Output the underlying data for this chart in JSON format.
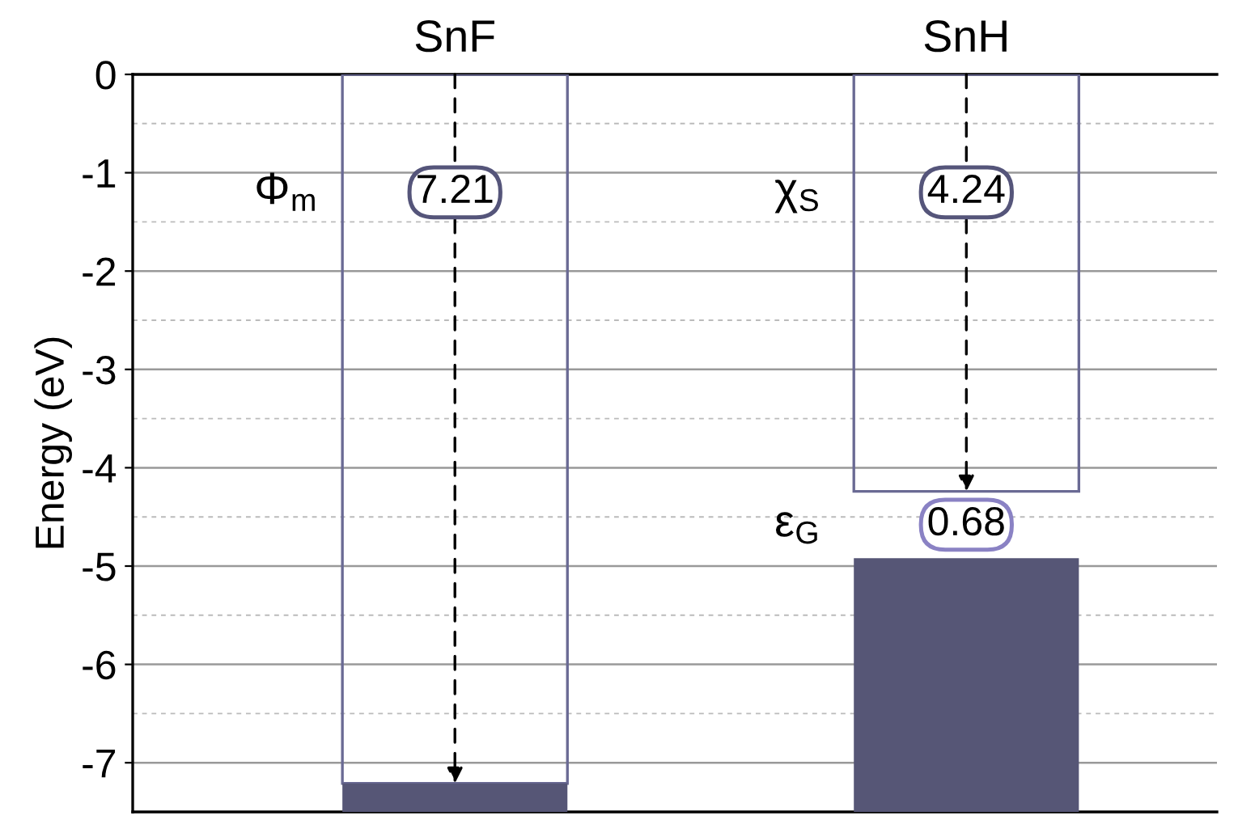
{
  "chart_data": {
    "type": "bar",
    "categories": [
      "SnF",
      "SnH"
    ],
    "ylabel": "Energy (eV)",
    "series": [
      {
        "color": "#6a6a94",
        "values": [
          -7.21,
          -4.24
        ],
        "base": [
          0,
          0
        ]
      },
      {
        "color": "#565676",
        "values": [
          -0.29,
          -2.58
        ],
        "base": [
          -7.21,
          -4.92
        ]
      }
    ],
    "ylim": [
      -7.5,
      0
    ],
    "yticks": [
      0,
      {
        "value": -0.5,
        "label": null
      },
      -1,
      {
        "value": -1.5,
        "label": null
      },
      -2,
      {
        "value": -2.5,
        "label": null
      },
      -3,
      {
        "value": -3.5,
        "label": null
      },
      -4,
      {
        "value": -4.5,
        "label": null
      },
      -5,
      {
        "value": -5.5,
        "label": null
      },
      -6,
      {
        "value": -6.5,
        "label": null
      },
      -7
    ],
    "grid": "y",
    "annotations": [
      "Φ$_{m}$",
      {
        "text": "7.21",
        "x": "SnF",
        "y": -7.21
      },
      "χ$_{S}$",
      {
        "text": "4.24",
        "x": "SnH",
        "y": -4.24
      },
      "ε$_{G}$",
      "0.68"
    ]
  }
}
